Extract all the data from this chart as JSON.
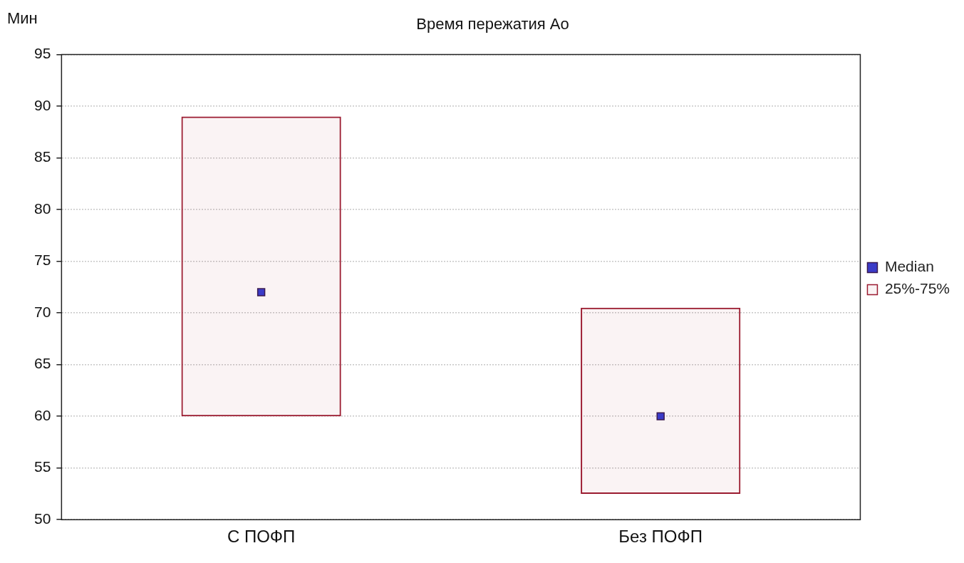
{
  "chart_data": {
    "type": "bar",
    "title": "Время пережатия Ао",
    "ylabel": "Мин",
    "categories": [
      "С ПОФП",
      "Без ПОФП"
    ],
    "series": [
      {
        "name": "Median",
        "type": "scatter",
        "color": "#3b3bc8",
        "x": [
          "С ПОФП",
          "Без ПОФП"
        ],
        "values": [
          72,
          60
        ]
      },
      {
        "name": "25%-75%",
        "color": "#9b1b30",
        "base": [
          60,
          52.5
        ],
        "values": [
          29,
          18
        ]
      }
    ],
    "ylim": [
      50,
      95
    ],
    "yticks": [
      50,
      55,
      60,
      65,
      70,
      75,
      80,
      85,
      90,
      95
    ],
    "grid": "y",
    "legend": "right",
    "marker": "square"
  }
}
